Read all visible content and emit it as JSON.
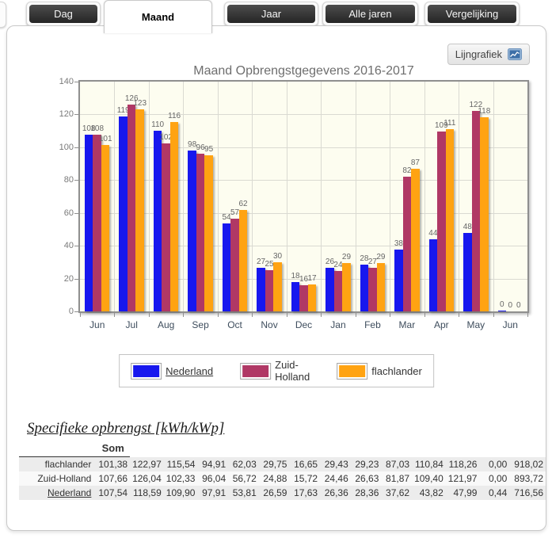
{
  "tabs": [
    {
      "label": "Dag",
      "active": false
    },
    {
      "label": "Maand",
      "active": true
    },
    {
      "label": "Jaar",
      "active": false
    },
    {
      "label": "Alle jaren",
      "active": false
    },
    {
      "label": "Vergelijking",
      "active": false
    }
  ],
  "toolbar": {
    "line_chart_button": "Lijngrafiek"
  },
  "chart_data": {
    "type": "bar",
    "title": "Maand Opbrengstgegevens 2016-2017",
    "categories": [
      "Jun",
      "Jul",
      "Aug",
      "Sep",
      "Oct",
      "Nov",
      "Dec",
      "Jan",
      "Feb",
      "Mar",
      "Apr",
      "May",
      "Jun"
    ],
    "series": [
      {
        "name": "Nederland",
        "color": "#1717ee",
        "link": true,
        "values": [
          107.54,
          118.59,
          109.9,
          97.91,
          53.81,
          26.59,
          17.63,
          26.36,
          28.36,
          37.62,
          43.82,
          47.99,
          0.44
        ]
      },
      {
        "name": "Zuid-Holland",
        "color": "#b03865",
        "link": false,
        "values": [
          107.66,
          126.04,
          102.33,
          96.04,
          56.72,
          24.88,
          15.72,
          24.46,
          26.63,
          81.87,
          109.4,
          121.97,
          0.0
        ]
      },
      {
        "name": "flachlander",
        "color": "#ffa312",
        "link": false,
        "values": [
          101.38,
          122.97,
          115.54,
          94.91,
          62.03,
          29.75,
          16.65,
          29.43,
          29.23,
          87.03,
          110.84,
          118.26,
          0.0
        ]
      }
    ],
    "ylim": [
      0,
      140
    ],
    "ystep": 20,
    "grid": true,
    "legend_position": "bottom",
    "bar_value_labels_shown": true
  },
  "table": {
    "heading": "Specifieke opbrengst [kWh/kWp]",
    "sum_header": "Som",
    "rows": [
      {
        "label": "flachlander",
        "link": false,
        "values": [
          "101,38",
          "122,97",
          "115,54",
          "94,91",
          "62,03",
          "29,75",
          "16,65",
          "29,43",
          "29,23",
          "87,03",
          "110,84",
          "118,26",
          "0,00",
          "918,02"
        ]
      },
      {
        "label": "Zuid-Holland",
        "link": false,
        "values": [
          "107,66",
          "126,04",
          "102,33",
          "96,04",
          "56,72",
          "24,88",
          "15,72",
          "24,46",
          "26,63",
          "81,87",
          "109,40",
          "121,97",
          "0,00",
          "893,72"
        ]
      },
      {
        "label": "Nederland",
        "link": true,
        "values": [
          "107,54",
          "118,59",
          "109,90",
          "97,91",
          "53,81",
          "26,59",
          "17,63",
          "26,36",
          "28,36",
          "37,62",
          "43,82",
          "47,99",
          "0,44",
          "716,56"
        ]
      }
    ]
  }
}
